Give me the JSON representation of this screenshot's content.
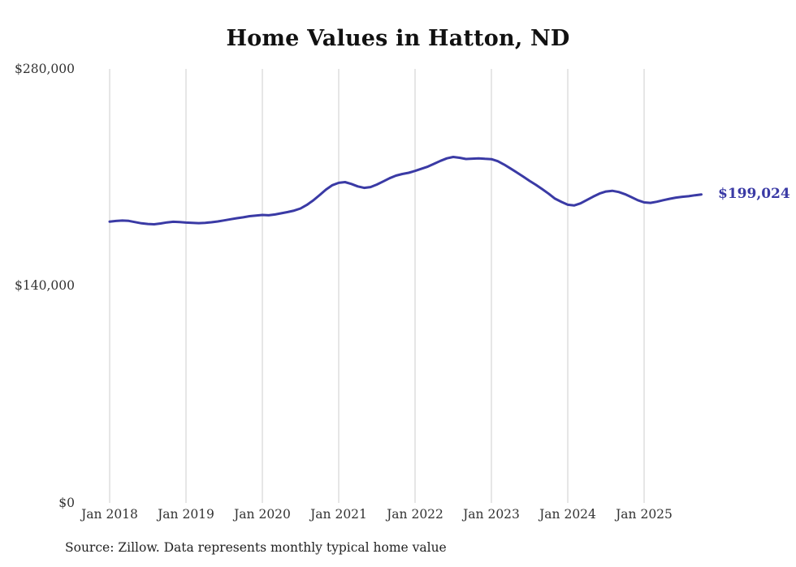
{
  "chart_data": {
    "type": "line",
    "title": "Home Values in Hatton, ND",
    "series_name": "Typical home value",
    "unit": "USD",
    "frequency": "monthly",
    "start_month": "Jan 2018",
    "end_month": "Oct 2025",
    "values": [
      181500,
      181900,
      182200,
      182000,
      181200,
      180400,
      180000,
      179800,
      180300,
      181000,
      181400,
      181200,
      180900,
      180700,
      180500,
      180700,
      181100,
      181600,
      182300,
      183000,
      183700,
      184300,
      185000,
      185400,
      185800,
      185600,
      186100,
      186900,
      187700,
      188600,
      190000,
      192300,
      195200,
      198600,
      202200,
      205000,
      206500,
      207000,
      205800,
      204200,
      203300,
      203800,
      205400,
      207400,
      209500,
      211200,
      212200,
      213000,
      214200,
      215600,
      217000,
      218800,
      220700,
      222300,
      223200,
      222700,
      221900,
      222100,
      222300,
      222000,
      221800,
      220500,
      218300,
      215800,
      213200,
      210500,
      207800,
      205200,
      202400,
      199500,
      196300,
      194200,
      192400,
      191900,
      193300,
      195400,
      197600,
      199600,
      200900,
      201400,
      200600,
      199200,
      197300,
      195300,
      193900,
      193600,
      194300,
      195300,
      196200,
      197000,
      197500,
      197900,
      198500,
      199024
    ],
    "final_value": 199024,
    "end_label": "$199,024",
    "x_tick_labels": [
      "Jan 2018",
      "Jan 2019",
      "Jan 2020",
      "Jan 2021",
      "Jan 2022",
      "Jan 2023",
      "Jan 2024",
      "Jan 2025"
    ],
    "y_tick_labels": [
      "$280,000",
      "$140,000",
      "$0"
    ],
    "y_tick_values": [
      280000,
      140000,
      0
    ],
    "ylim": [
      0,
      280000
    ],
    "grid": "vertical-only",
    "legend": "none",
    "line_color": "#3a3aa5",
    "grid_color": "#cccccc"
  },
  "footer": {
    "source": "Source: Zillow. Data represents monthly typical home value"
  }
}
